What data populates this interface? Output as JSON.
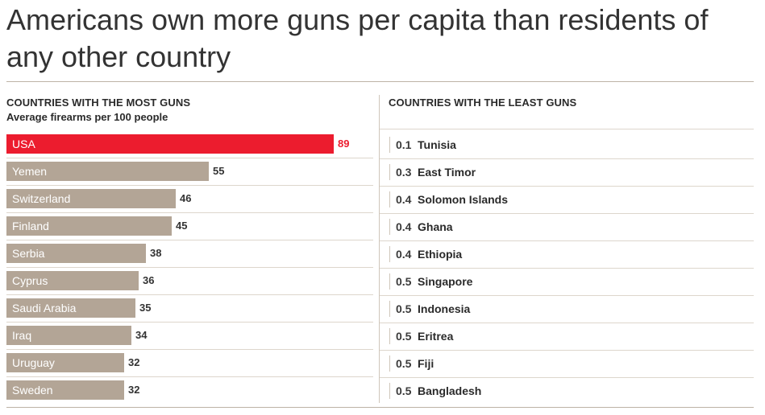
{
  "title": "Americans own more guns per capita than residents of any other country",
  "colors": {
    "highlight": "#ec1c2e",
    "bar": "#b3a596",
    "rule": "#bdb3a6"
  },
  "chart_data": [
    {
      "type": "bar",
      "title": "COUNTRIES WITH THE MOST GUNS",
      "subtitle": "Average firearms per 100 people",
      "orientation": "horizontal",
      "categories": [
        "USA",
        "Yemen",
        "Switzerland",
        "Finland",
        "Serbia",
        "Cyprus",
        "Saudi Arabia",
        "Iraq",
        "Uruguay",
        "Sweden"
      ],
      "values": [
        89,
        55,
        46,
        45,
        38,
        36,
        35,
        34,
        32,
        32
      ],
      "highlight": "USA",
      "xlim": [
        0,
        89
      ]
    },
    {
      "type": "table",
      "title": "COUNTRIES WITH THE LEAST GUNS",
      "categories": [
        "Tunisia",
        "East Timor",
        "Solomon Islands",
        "Ghana",
        "Ethiopia",
        "Singapore",
        "Indonesia",
        "Eritrea",
        "Fiji",
        "Bangladesh"
      ],
      "values": [
        "0.1",
        "0.3",
        "0.4",
        "0.4",
        "0.4",
        "0.5",
        "0.5",
        "0.5",
        "0.5",
        "0.5"
      ]
    }
  ]
}
